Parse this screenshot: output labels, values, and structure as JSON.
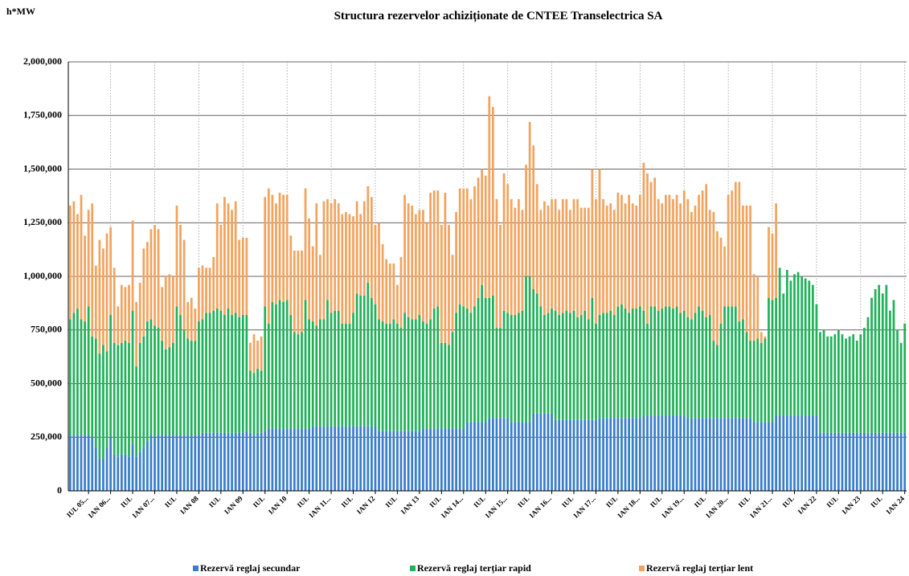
{
  "chart_data": {
    "type": "stacked-bar",
    "title": "Structura rezervelor achiziționate de CNTEE Transelectrica SA",
    "y_label": "h*MW",
    "ylim": [
      0,
      2000000
    ],
    "yticks": [
      0,
      {
        "value": 250000,
        "label": "250,000"
      },
      {
        "value": 500000,
        "label": "500,000"
      },
      {
        "value": 750000,
        "label": "750,000"
      },
      {
        "value": 1000000,
        "label": "1,000,000"
      },
      {
        "value": 1250000,
        "label": "1,250,000"
      },
      {
        "value": 1500000,
        "label": "1,500,000"
      },
      {
        "value": 1750000,
        "label": "1,750,000"
      },
      {
        "value": 2000000,
        "label": "2,000,000"
      }
    ],
    "grid": true,
    "legend": "bottom",
    "categories": [
      null,
      null,
      null,
      null,
      null,
      "IUL 05...",
      null,
      null,
      null,
      null,
      null,
      "IAN 06...",
      null,
      null,
      null,
      null,
      null,
      "IUL",
      null,
      null,
      null,
      null,
      null,
      "IAN 07...",
      null,
      null,
      null,
      null,
      null,
      "IUL",
      null,
      null,
      null,
      null,
      null,
      "IAN 08",
      null,
      null,
      null,
      null,
      null,
      "IUL",
      null,
      null,
      null,
      null,
      null,
      "IAN 09",
      null,
      null,
      null,
      null,
      null,
      "IUL",
      null,
      null,
      null,
      null,
      null,
      "IAN 10",
      null,
      null,
      null,
      null,
      null,
      "IUL",
      null,
      null,
      null,
      null,
      null,
      "IAN 11...",
      null,
      null,
      null,
      null,
      null,
      "IUL",
      null,
      null,
      null,
      null,
      null,
      "IAN 12",
      null,
      null,
      null,
      null,
      null,
      "IUL",
      null,
      null,
      null,
      null,
      null,
      "IAN 13",
      null,
      null,
      null,
      null,
      null,
      "IUL",
      null,
      null,
      null,
      null,
      null,
      "IAN 14...",
      null,
      null,
      null,
      null,
      null,
      "IUL",
      null,
      null,
      null,
      null,
      null,
      "IAN 15...",
      null,
      null,
      null,
      null,
      null,
      "IUL",
      null,
      null,
      null,
      null,
      null,
      "IAN 16...",
      null,
      null,
      null,
      null,
      null,
      "IUL",
      null,
      null,
      null,
      null,
      null,
      "IAN 17...",
      null,
      null,
      null,
      null,
      null,
      "IUL",
      null,
      null,
      null,
      null,
      null,
      "IAN 18...",
      null,
      null,
      null,
      null,
      null,
      "IUL",
      null,
      null,
      null,
      null,
      null,
      "IAN 19...",
      null,
      null,
      null,
      null,
      null,
      "IUL",
      null,
      null,
      null,
      null,
      null,
      "IAN 20...",
      null,
      null,
      null,
      null,
      null,
      "IUL",
      null,
      null,
      null,
      null,
      null,
      "IAN 21...",
      null,
      null,
      null,
      null,
      null,
      "IUL",
      null,
      null,
      null,
      null,
      null,
      "IAN 22",
      null,
      null,
      null,
      null,
      null,
      "IUL",
      null,
      null,
      null,
      null,
      null,
      "IAN 23",
      null,
      null,
      null,
      null,
      null,
      "IUL",
      null,
      null,
      null,
      null,
      null,
      "IAN 24"
    ],
    "series": [
      {
        "name": "Rezervă reglaj secundar",
        "color": "#3a7dc9",
        "values": [
          260000,
          260000,
          260000,
          260000,
          260000,
          260000,
          250000,
          200000,
          150000,
          150000,
          200000,
          250000,
          170000,
          160000,
          170000,
          170000,
          160000,
          220000,
          160000,
          180000,
          200000,
          230000,
          260000,
          250000,
          260000,
          260000,
          260000,
          260000,
          260000,
          260000,
          260000,
          260000,
          260000,
          260000,
          260000,
          260000,
          270000,
          270000,
          270000,
          270000,
          270000,
          270000,
          270000,
          270000,
          270000,
          270000,
          270000,
          270000,
          280000,
          270000,
          260000,
          270000,
          270000,
          280000,
          290000,
          290000,
          290000,
          290000,
          290000,
          290000,
          290000,
          290000,
          290000,
          290000,
          290000,
          290000,
          300000,
          300000,
          300000,
          300000,
          300000,
          300000,
          300000,
          300000,
          300000,
          300000,
          300000,
          300000,
          300000,
          300000,
          300000,
          300000,
          300000,
          300000,
          280000,
          280000,
          280000,
          280000,
          280000,
          280000,
          280000,
          280000,
          280000,
          280000,
          280000,
          280000,
          290000,
          290000,
          290000,
          290000,
          290000,
          290000,
          290000,
          290000,
          290000,
          290000,
          290000,
          290000,
          320000,
          320000,
          320000,
          320000,
          320000,
          320000,
          340000,
          340000,
          340000,
          340000,
          340000,
          340000,
          320000,
          320000,
          320000,
          320000,
          320000,
          320000,
          360000,
          360000,
          360000,
          360000,
          360000,
          360000,
          330000,
          330000,
          330000,
          330000,
          330000,
          330000,
          330000,
          330000,
          330000,
          330000,
          330000,
          330000,
          340000,
          340000,
          340000,
          340000,
          340000,
          340000,
          340000,
          340000,
          340000,
          340000,
          340000,
          340000,
          350000,
          350000,
          350000,
          350000,
          350000,
          350000,
          350000,
          350000,
          350000,
          350000,
          350000,
          350000,
          340000,
          340000,
          340000,
          340000,
          340000,
          340000,
          340000,
          340000,
          340000,
          340000,
          340000,
          340000,
          340000,
          340000,
          340000,
          340000,
          340000,
          340000,
          320000,
          320000,
          320000,
          320000,
          320000,
          320000,
          350000,
          350000,
          350000,
          350000,
          350000,
          350000,
          350000,
          350000,
          350000,
          350000,
          350000,
          350000,
          270000,
          270000,
          270000,
          270000,
          270000,
          270000,
          270000,
          270000,
          270000,
          270000,
          270000,
          270000,
          270000,
          270000,
          270000,
          270000,
          270000,
          270000,
          270000,
          270000,
          270000,
          270000,
          270000,
          270000
        ]
      },
      {
        "name": "Rezervă reglaj terțiar rapid",
        "color": "#22b05a",
        "values": [
          540000,
          570000,
          590000,
          540000,
          530000,
          600000,
          470000,
          510000,
          490000,
          530000,
          450000,
          570000,
          520000,
          520000,
          520000,
          530000,
          530000,
          620000,
          420000,
          510000,
          520000,
          560000,
          540000,
          520000,
          500000,
          440000,
          400000,
          410000,
          430000,
          600000,
          560000,
          490000,
          450000,
          440000,
          440000,
          530000,
          530000,
          560000,
          560000,
          570000,
          580000,
          570000,
          550000,
          580000,
          550000,
          560000,
          540000,
          550000,
          540000,
          290000,
          290000,
          300000,
          290000,
          580000,
          490000,
          590000,
          580000,
          600000,
          590000,
          600000,
          530000,
          450000,
          440000,
          450000,
          600000,
          510000,
          490000,
          470000,
          500000,
          500000,
          590000,
          530000,
          540000,
          540000,
          480000,
          480000,
          480000,
          530000,
          620000,
          610000,
          610000,
          670000,
          600000,
          570000,
          520000,
          510000,
          500000,
          500000,
          520000,
          500000,
          480000,
          550000,
          530000,
          520000,
          520000,
          540000,
          500000,
          490000,
          510000,
          560000,
          570000,
          400000,
          400000,
          390000,
          450000,
          540000,
          580000,
          570000,
          530000,
          510000,
          540000,
          580000,
          640000,
          580000,
          560000,
          570000,
          420000,
          420000,
          500000,
          490000,
          500000,
          500000,
          510000,
          520000,
          680000,
          680000,
          580000,
          560000,
          500000,
          460000,
          470000,
          490000,
          510000,
          490000,
          500000,
          510000,
          500000,
          510000,
          480000,
          490000,
          510000,
          470000,
          570000,
          450000,
          480000,
          490000,
          490000,
          500000,
          480000,
          520000,
          530000,
          510000,
          490000,
          510000,
          510000,
          520000,
          490000,
          430000,
          510000,
          510000,
          490000,
          500000,
          510000,
          510000,
          500000,
          510000,
          480000,
          490000,
          470000,
          460000,
          490000,
          520000,
          500000,
          470000,
          480000,
          360000,
          340000,
          440000,
          520000,
          520000,
          520000,
          520000,
          450000,
          460000,
          400000,
          360000,
          380000,
          390000,
          370000,
          390000,
          580000,
          570000,
          550000,
          690000,
          570000,
          680000,
          630000,
          660000,
          670000,
          650000,
          640000,
          630000,
          610000,
          520000,
          470000,
          480000,
          450000,
          450000,
          460000,
          480000,
          460000,
          440000,
          450000,
          460000,
          430000,
          460000,
          490000,
          540000,
          630000,
          670000,
          690000,
          650000,
          690000,
          570000,
          620000,
          480000,
          420000,
          510000
        ]
      },
      {
        "name": "Rezervă reglaj terțiar lent",
        "color": "#f2a35e",
        "values": [
          530000,
          520000,
          440000,
          580000,
          400000,
          450000,
          620000,
          340000,
          530000,
          450000,
          550000,
          410000,
          350000,
          180000,
          270000,
          250000,
          270000,
          420000,
          300000,
          280000,
          410000,
          370000,
          420000,
          470000,
          460000,
          250000,
          340000,
          340000,
          310000,
          470000,
          420000,
          420000,
          170000,
          200000,
          150000,
          250000,
          250000,
          210000,
          210000,
          250000,
          490000,
          400000,
          550000,
          490000,
          490000,
          520000,
          360000,
          360000,
          360000,
          130000,
          180000,
          130000,
          160000,
          510000,
          630000,
          500000,
          470000,
          500000,
          500000,
          490000,
          370000,
          380000,
          390000,
          380000,
          520000,
          470000,
          350000,
          570000,
          300000,
          550000,
          470000,
          510000,
          520000,
          500000,
          510000,
          520000,
          510000,
          450000,
          430000,
          380000,
          440000,
          450000,
          470000,
          370000,
          450000,
          360000,
          300000,
          280000,
          260000,
          180000,
          330000,
          550000,
          530000,
          530000,
          490000,
          490000,
          520000,
          470000,
          590000,
          550000,
          540000,
          550000,
          700000,
          560000,
          360000,
          470000,
          540000,
          550000,
          560000,
          530000,
          560000,
          560000,
          540000,
          570000,
          940000,
          880000,
          600000,
          480000,
          640000,
          600000,
          540000,
          500000,
          530000,
          470000,
          520000,
          720000,
          670000,
          510000,
          450000,
          530000,
          500000,
          510000,
          520000,
          490000,
          530000,
          520000,
          480000,
          520000,
          550000,
          500000,
          480000,
          520000,
          600000,
          580000,
          680000,
          530000,
          500000,
          500000,
          490000,
          530000,
          510000,
          490000,
          550000,
          490000,
          480000,
          520000,
          690000,
          700000,
          580000,
          600000,
          520000,
          490000,
          520000,
          520000,
          510000,
          520000,
          510000,
          560000,
          550000,
          500000,
          500000,
          520000,
          560000,
          620000,
          490000,
          600000,
          530000,
          400000,
          280000,
          520000,
          540000,
          580000,
          650000,
          530000,
          590000,
          630000,
          310000,
          290000,
          50000,
          10000,
          330000,
          310000,
          440000,
          0,
          0,
          0,
          0,
          0,
          0,
          0,
          0,
          0,
          0,
          0,
          0,
          0,
          0,
          0,
          0,
          0,
          0,
          0,
          0,
          0,
          0,
          0,
          0,
          0,
          0,
          0,
          0,
          0,
          0,
          0,
          0,
          0,
          0,
          0
        ]
      }
    ]
  }
}
